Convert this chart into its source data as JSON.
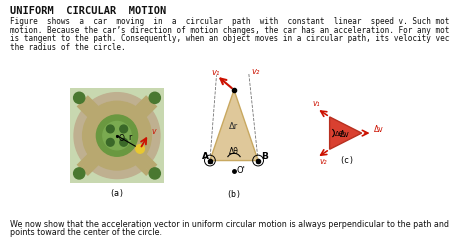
{
  "title": "UNIFORM  CIRCULAR  MOTION",
  "para1_line1": "Figure  shows  a  car  moving  in  a  circular  path  with  constant  linear  speed v. Such motion is called uniform circular",
  "para1_line2": "motion. Because the car’s direction of motion changes, the car has an acceleration. For any motion, the velocity vector",
  "para1_line3": "is tangent to the path. Consequently, when an object moves in a circular path, its velocity vector is perpendicular to",
  "para1_line4": "the radius of the circle.",
  "para2_line1": "We now show that the acceleration vector in uniform circular motion is always perpendicular to the path and always",
  "para2_line2": "points toward the center of the circle.",
  "label_a": "(a)",
  "label_b": "(b)",
  "label_c": "(c)",
  "red_color": "#cc1100",
  "tan_color": "#dfc89a",
  "tan_edge": "#c8a860",
  "tri_c_fill": "#d94030",
  "tri_c_edge": "#b83020",
  "road_outer": "#c8b87a",
  "road_surface": "#b8a870",
  "green_center": "#6a9840",
  "green_light": "#7aaa50",
  "green_bg": "#8aaa60",
  "tree_dark": "#3a6828",
  "tree_mid": "#4a7830"
}
